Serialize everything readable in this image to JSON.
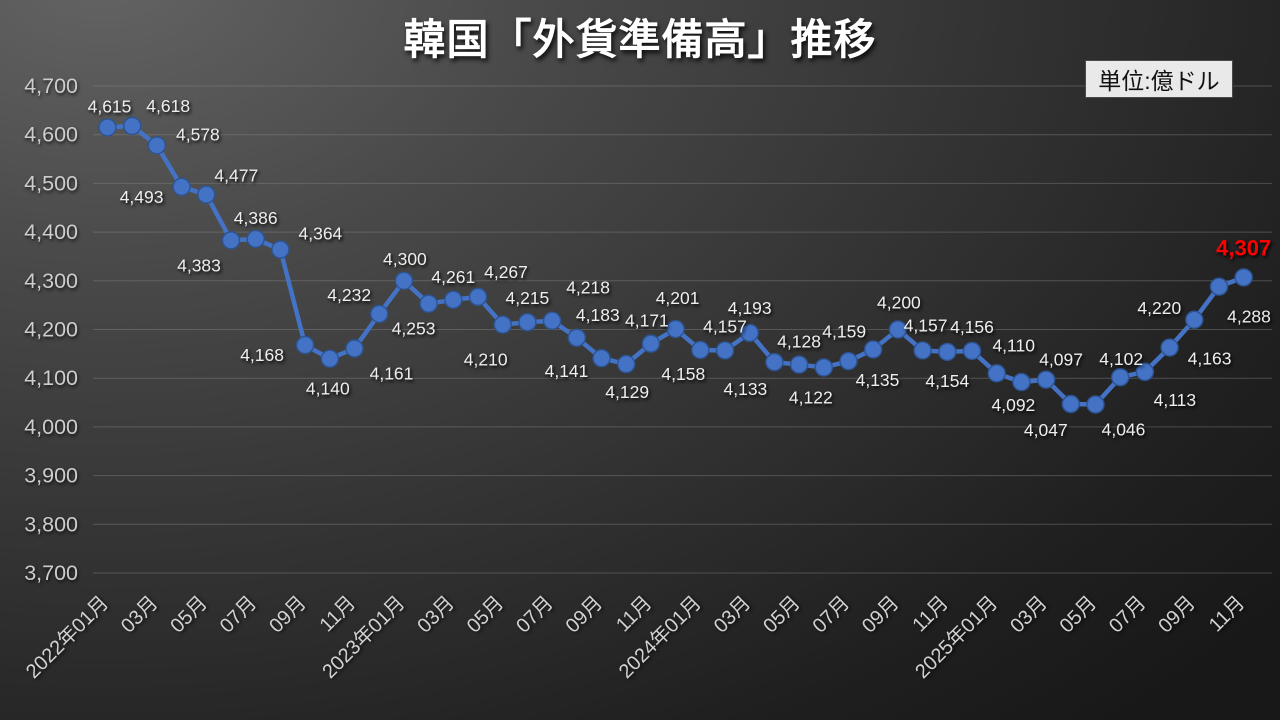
{
  "title": "韓国「外貨準備高」推移",
  "unit_box_label": "単位:億ドル",
  "colors": {
    "background_light": "#646464",
    "background_dark": "#181818",
    "line": "#4472c4",
    "marker_fill": "#4472c4",
    "marker_edge": "#2d5492",
    "data_label": "#eeeeee",
    "final_label": "#ff0000",
    "axis_text": "#cdcdcd",
    "gridline": "#8a8a8a",
    "unit_box_bg": "#e9e9e9",
    "unit_box_text": "#111111",
    "title_text": "#ffffff"
  },
  "chart_data": {
    "type": "line",
    "title": "韓国「外貨準備高」推移",
    "unit": "単位:億ドル",
    "xlabel": "",
    "ylabel": "",
    "ylim": [
      3700,
      4700
    ],
    "ytick_interval": 100,
    "ytick_labels": [
      "4,700",
      "4,600",
      "4,500",
      "4,400",
      "4,300",
      "4,200",
      "4,100",
      "4,000",
      "3,900",
      "3,800",
      "3,700"
    ],
    "grid": true,
    "legend": "none",
    "x_tick_shown": [
      "2022年01月",
      "03月",
      "05月",
      "07月",
      "09月",
      "11月",
      "2023年01月",
      "03月",
      "05月",
      "07月",
      "09月",
      "11月",
      "2024年01月",
      "03月",
      "05月",
      "07月",
      "09月",
      "11月",
      "2025年01月",
      "03月",
      "05月",
      "07月",
      "09月",
      "11月"
    ],
    "points": [
      {
        "month": "2022年01月",
        "value": 4615,
        "label": "4,615"
      },
      {
        "month": "2022年02月",
        "value": 4618,
        "label": "4,618"
      },
      {
        "month": "2022年03月",
        "value": 4578,
        "label": "4,578"
      },
      {
        "month": "2022年04月",
        "value": 4493,
        "label": "4,493"
      },
      {
        "month": "2022年05月",
        "value": 4477,
        "label": "4,477"
      },
      {
        "month": "2022年06月",
        "value": 4383,
        "label": "4,383"
      },
      {
        "month": "2022年07月",
        "value": 4386,
        "label": "4,386"
      },
      {
        "month": "2022年08月",
        "value": 4364,
        "label": "4,364"
      },
      {
        "month": "2022年09月",
        "value": 4168,
        "label": "4,168"
      },
      {
        "month": "2022年10月",
        "value": 4140,
        "label": "4,140"
      },
      {
        "month": "2022年11月",
        "value": 4161,
        "label": "4,161"
      },
      {
        "month": "2022年12月",
        "value": 4232,
        "label": "4,232"
      },
      {
        "month": "2023年01月",
        "value": 4300,
        "label": "4,300"
      },
      {
        "month": "2023年02月",
        "value": 4253,
        "label": "4,253"
      },
      {
        "month": "2023年03月",
        "value": 4261,
        "label": "4,261"
      },
      {
        "month": "2023年04月",
        "value": 4267,
        "label": "4,267"
      },
      {
        "month": "2023年05月",
        "value": 4210,
        "label": "4,210"
      },
      {
        "month": "2023年06月",
        "value": 4215,
        "label": "4,215"
      },
      {
        "month": "2023年07月",
        "value": 4218,
        "label": "4,218"
      },
      {
        "month": "2023年08月",
        "value": 4183,
        "label": "4,183"
      },
      {
        "month": "2023年09月",
        "value": 4141,
        "label": "4,141"
      },
      {
        "month": "2023年10月",
        "value": 4129,
        "label": "4,129"
      },
      {
        "month": "2023年11月",
        "value": 4171,
        "label": "4,171"
      },
      {
        "month": "2023年12月",
        "value": 4201,
        "label": "4,201"
      },
      {
        "month": "2024年01月",
        "value": 4158,
        "label": "4,158"
      },
      {
        "month": "2024年02月",
        "value": 4157,
        "label": "4,157"
      },
      {
        "month": "2024年03月",
        "value": 4193,
        "label": "4,193"
      },
      {
        "month": "2024年04月",
        "value": 4133,
        "label": "4,133"
      },
      {
        "month": "2024年05月",
        "value": 4128,
        "label": "4,128"
      },
      {
        "month": "2024年06月",
        "value": 4122,
        "label": "4,122"
      },
      {
        "month": "2024年07月",
        "value": 4135,
        "label": "4,135"
      },
      {
        "month": "2024年08月",
        "value": 4159,
        "label": "4,159"
      },
      {
        "month": "2024年09月",
        "value": 4200,
        "label": "4,200"
      },
      {
        "month": "2024年10月",
        "value": 4157,
        "label": "4,157"
      },
      {
        "month": "2024年11月",
        "value": 4154,
        "label": "4,154"
      },
      {
        "month": "2024年12月",
        "value": 4156,
        "label": "4,156"
      },
      {
        "month": "2025年01月",
        "value": 4110,
        "label": "4,110"
      },
      {
        "month": "2025年02月",
        "value": 4092,
        "label": "4,092"
      },
      {
        "month": "2025年03月",
        "value": 4097,
        "label": "4,097"
      },
      {
        "month": "2025年04月",
        "value": 4047,
        "label": "4,047"
      },
      {
        "month": "2025年05月",
        "value": 4046,
        "label": "4,046"
      },
      {
        "month": "2025年06月",
        "value": 4102,
        "label": "4,102"
      },
      {
        "month": "2025年07月",
        "value": 4113,
        "label": "4,113"
      },
      {
        "month": "2025年08月",
        "value": 4163,
        "label": "4,163"
      },
      {
        "month": "2025年09月",
        "value": 4220,
        "label": "4,220"
      },
      {
        "month": "2025年10月",
        "value": 4288,
        "label": "4,288"
      },
      {
        "month": "2025年11月",
        "value": 4307,
        "label": "4,307",
        "highlight": true
      }
    ]
  }
}
